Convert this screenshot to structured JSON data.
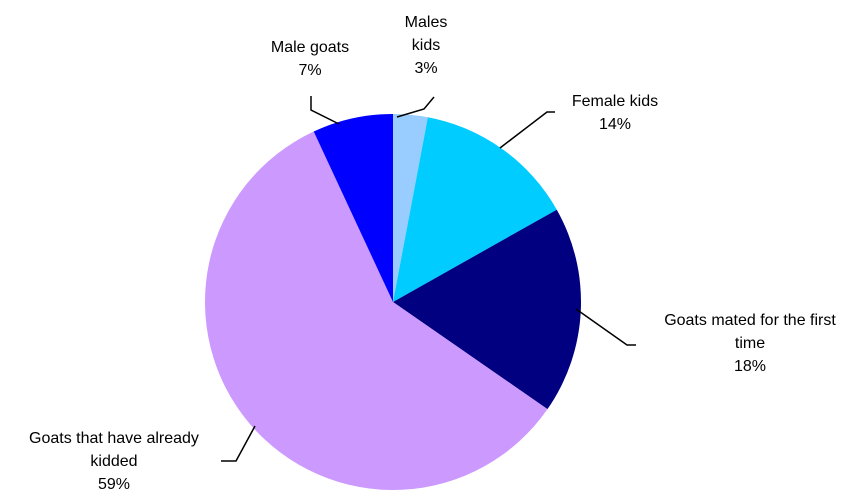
{
  "chart_data": {
    "type": "pie",
    "start_angle_deg": 0,
    "direction": "clockwise",
    "slices": [
      {
        "label_lines": [
          "Males",
          "kids"
        ],
        "value": 3,
        "value_label": "3%",
        "color": "#99ccff"
      },
      {
        "label_lines": [
          "Female kids"
        ],
        "value": 14,
        "value_label": "14%",
        "color": "#00ccff"
      },
      {
        "label_lines": [
          "Goats mated for the first",
          "time"
        ],
        "value": 18,
        "value_label": "18%",
        "color": "#000080"
      },
      {
        "label_lines": [
          "Goats that have already",
          "kidded"
        ],
        "value": 59,
        "value_label": "59%",
        "color": "#cc99ff"
      },
      {
        "label_lines": [
          "Male goats"
        ],
        "value": 7,
        "value_label": "7%",
        "color": "#0000ff"
      }
    ],
    "legend": "none"
  }
}
